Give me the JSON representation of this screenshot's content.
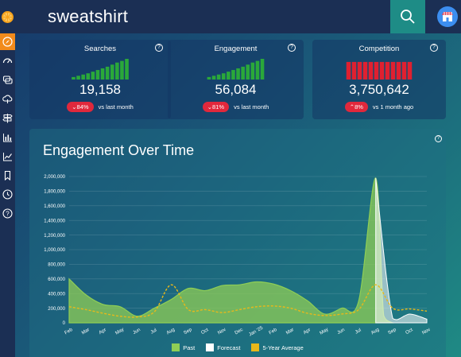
{
  "app": {
    "search_query": "sweatshirt"
  },
  "sidebar": {
    "items": [
      {
        "icon": "compass-icon",
        "active": true
      },
      {
        "icon": "speedometer-icon"
      },
      {
        "icon": "chat-bubbles-icon"
      },
      {
        "icon": "cloud-upload-icon"
      },
      {
        "icon": "signpost-icon"
      },
      {
        "icon": "bar-chart-icon"
      },
      {
        "icon": "line-chart-icon"
      },
      {
        "icon": "bookmark-icon"
      },
      {
        "icon": "clock-icon"
      },
      {
        "icon": "help-icon"
      }
    ]
  },
  "header": {
    "search_icon": "search-icon",
    "store_icon": "store-icon"
  },
  "cards": [
    {
      "title": "Searches",
      "help": "?",
      "value": "19,158",
      "delta": "84%",
      "note": "vs last month",
      "bar_color": "#2aa83a",
      "bar_levels": [
        0.12,
        0.18,
        0.24,
        0.3,
        0.38,
        0.46,
        0.54,
        0.62,
        0.72,
        0.82,
        0.9,
        1.0
      ]
    },
    {
      "title": "Engagement",
      "help": "?",
      "value": "56,084",
      "delta": "81%",
      "note": "vs last month",
      "bar_color": "#2aa83a",
      "bar_levels": [
        0.12,
        0.18,
        0.24,
        0.3,
        0.38,
        0.46,
        0.54,
        0.62,
        0.72,
        0.82,
        0.9,
        1.0
      ]
    },
    {
      "title": "Competition",
      "help": "?",
      "value": "3,750,642",
      "delta": "8%",
      "note": "vs 1 month ago",
      "bar_color": "#e02030",
      "bar_levels": [
        0.85,
        0.85,
        0.85,
        0.85,
        0.85,
        0.85,
        0.85,
        0.85,
        0.85,
        0.85,
        0.85,
        0.85
      ]
    }
  ],
  "main": {
    "title": "Engagement Over Time",
    "help": "?"
  },
  "chart_data": {
    "type": "area",
    "title": "Engagement Over Time",
    "xlabel": "",
    "ylabel": "",
    "ylim": [
      0,
      2000000
    ],
    "yticks": [
      "0",
      "200,000",
      "400,000",
      "600,000",
      "800,000",
      "1,000,000",
      "1,200,000",
      "1,400,000",
      "1,600,000",
      "1,800,000",
      "2,000,000"
    ],
    "categories": [
      "Feb",
      "Mar",
      "Apr",
      "May",
      "Jun",
      "Jul",
      "Aug",
      "Sep",
      "Oct",
      "Nov",
      "Dec",
      "Jan '25",
      "Feb",
      "Mar",
      "Apr",
      "May",
      "Jun",
      "Jul",
      "Aug",
      "Sep",
      "Oct",
      "Nov"
    ],
    "series": [
      {
        "name": "Past",
        "color": "#8fce55",
        "values": [
          600000,
          380000,
          250000,
          220000,
          90000,
          200000,
          320000,
          470000,
          440000,
          510000,
          520000,
          560000,
          530000,
          440000,
          300000,
          120000,
          200000,
          300000,
          1980000,
          0,
          0,
          0
        ]
      },
      {
        "name": "Forecast",
        "color": "#ffffff",
        "values": [
          null,
          null,
          null,
          null,
          null,
          null,
          null,
          null,
          null,
          null,
          null,
          null,
          null,
          null,
          null,
          null,
          null,
          null,
          1980000,
          60000,
          120000,
          50000
        ]
      },
      {
        "name": "5-Year Average",
        "color": "#e8b81a",
        "values": [
          220000,
          180000,
          130000,
          90000,
          80000,
          150000,
          520000,
          180000,
          180000,
          140000,
          180000,
          220000,
          230000,
          200000,
          130000,
          100000,
          120000,
          180000,
          520000,
          200000,
          190000,
          160000
        ]
      }
    ],
    "legend_position": "bottom-center",
    "grid": true
  }
}
